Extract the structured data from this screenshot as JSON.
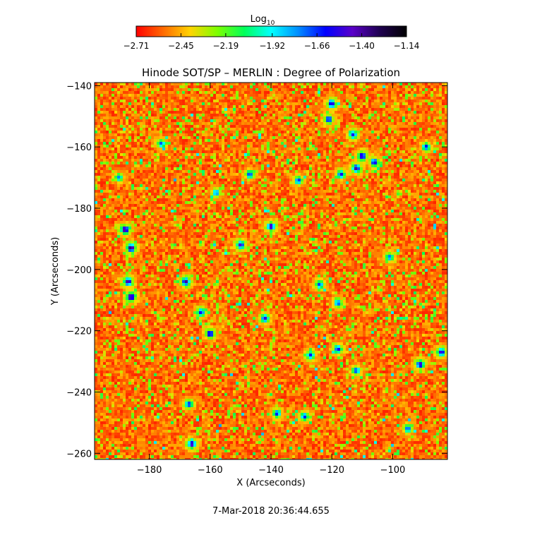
{
  "chart_data": {
    "type": "heatmap",
    "title": "Hinode SOT/SP – MERLIN : Degree of Polarization",
    "xlabel": "X (Arcseconds)",
    "ylabel": "Y (Arcseconds)",
    "xlim": [
      -198,
      -82
    ],
    "ylim": [
      -262,
      -139
    ],
    "x_ticks": [
      -180,
      -160,
      -140,
      -120,
      -100
    ],
    "y_ticks": [
      -140,
      -160,
      -180,
      -200,
      -220,
      -240,
      -260
    ],
    "x_tick_labels": [
      "−180",
      "−160",
      "−140",
      "−120",
      "−100"
    ],
    "y_tick_labels": [
      "−140",
      "−160",
      "−180",
      "−200",
      "−220",
      "−240",
      "−260"
    ],
    "colorbar": {
      "label_main": "Log",
      "label_sub": "10",
      "range": [
        -2.71,
        -1.14
      ],
      "ticks": [
        -2.71,
        -2.45,
        -2.19,
        -1.92,
        -1.66,
        -1.4,
        -1.14
      ],
      "tick_labels": [
        "−2.71",
        "−2.45",
        "−2.19",
        "−1.92",
        "−1.66",
        "−1.40",
        "−1.14"
      ],
      "colors": [
        "#ff0000",
        "#ff6a00",
        "#ffd400",
        "#7dff00",
        "#00ff5a",
        "#00ffff",
        "#008cff",
        "#0000ff",
        "#5a00c8",
        "#1e0050",
        "#000000"
      ]
    },
    "features": [
      {
        "x": -188,
        "y": -187,
        "level": -1.3
      },
      {
        "x": -186,
        "y": -193,
        "level": -1.25
      },
      {
        "x": -187,
        "y": -204,
        "level": -1.35
      },
      {
        "x": -186,
        "y": -209,
        "level": -1.28
      },
      {
        "x": -168,
        "y": -204,
        "level": -1.38
      },
      {
        "x": -163,
        "y": -214,
        "level": -1.55
      },
      {
        "x": -160,
        "y": -221,
        "level": -1.42
      },
      {
        "x": -166,
        "y": -257,
        "level": -1.4
      },
      {
        "x": -167,
        "y": -244,
        "level": -1.6
      },
      {
        "x": -147,
        "y": -169,
        "level": -1.62
      },
      {
        "x": -150,
        "y": -192,
        "level": -1.45
      },
      {
        "x": -140,
        "y": -186,
        "level": -1.38
      },
      {
        "x": -142,
        "y": -216,
        "level": -1.5
      },
      {
        "x": -138,
        "y": -247,
        "level": -1.6
      },
      {
        "x": -120,
        "y": -146,
        "level": -1.45
      },
      {
        "x": -121,
        "y": -151,
        "level": -1.5
      },
      {
        "x": -113,
        "y": -156,
        "level": -1.55
      },
      {
        "x": -110,
        "y": -163,
        "level": -1.4
      },
      {
        "x": -106,
        "y": -165,
        "level": -1.48
      },
      {
        "x": -112,
        "y": -167,
        "level": -1.38
      },
      {
        "x": -117,
        "y": -169,
        "level": -1.55
      },
      {
        "x": -131,
        "y": -171,
        "level": -1.62
      },
      {
        "x": -124,
        "y": -205,
        "level": -1.65
      },
      {
        "x": -118,
        "y": -211,
        "level": -1.65
      },
      {
        "x": -118,
        "y": -226,
        "level": -1.55
      },
      {
        "x": -127,
        "y": -228,
        "level": -1.6
      },
      {
        "x": -112,
        "y": -233,
        "level": -1.62
      },
      {
        "x": -91,
        "y": -231,
        "level": -1.42
      },
      {
        "x": -84,
        "y": -227,
        "level": -1.45
      },
      {
        "x": -89,
        "y": -160,
        "level": -1.6
      },
      {
        "x": -129,
        "y": -248,
        "level": -1.62
      },
      {
        "x": -95,
        "y": -252,
        "level": -1.65
      },
      {
        "x": -176,
        "y": -159,
        "level": -1.68
      },
      {
        "x": -158,
        "y": -175,
        "level": -1.7
      },
      {
        "x": -190,
        "y": -170,
        "level": -1.75
      },
      {
        "x": -101,
        "y": -196,
        "level": -1.7
      }
    ],
    "grid": false
  },
  "timestamp": "7-Mar-2018 20:36:44.655"
}
